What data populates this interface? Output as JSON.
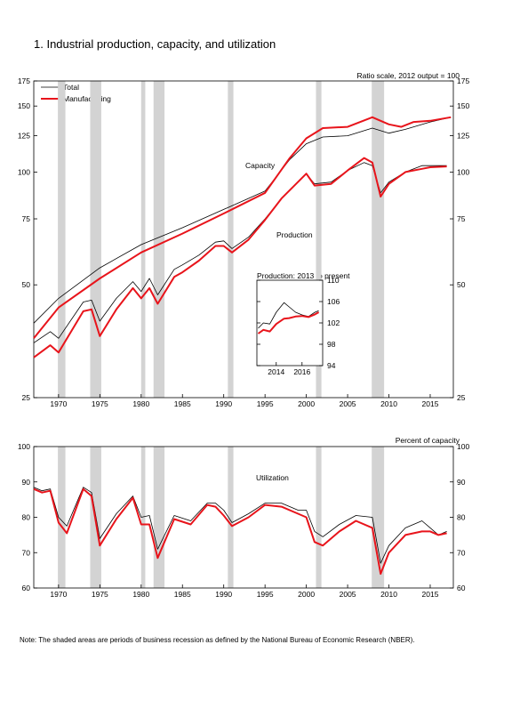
{
  "page": {
    "title": "1.  Industrial production, capacity, and utilization",
    "note": "Note: The shaded areas are periods of business recession as defined by the National Bureau of Economic Research (NBER)."
  },
  "colors": {
    "total": "#000000",
    "manufacturing": "#e8141b",
    "recession": "#d3d3d3",
    "axis": "#000000"
  },
  "recessions": [
    [
      1969.92,
      1970.83
    ],
    [
      1973.83,
      1975.17
    ],
    [
      1980.0,
      1980.5
    ],
    [
      1981.5,
      1982.83
    ],
    [
      1990.5,
      1991.17
    ],
    [
      2001.17,
      2001.83
    ],
    [
      2007.92,
      2009.42
    ]
  ],
  "chart_data": [
    {
      "type": "line",
      "id": "levels",
      "scale_note": "Ratio scale, 2012 output = 100",
      "yscale": "log",
      "xlim": [
        1967,
        2017.8
      ],
      "ylim": [
        25,
        175
      ],
      "yticks": [
        25,
        50,
        75,
        100,
        125,
        150,
        175
      ],
      "xticks": [
        1970,
        1975,
        1980,
        1985,
        1990,
        1995,
        2000,
        2005,
        2010,
        2015
      ],
      "legend": {
        "position": "top-left",
        "entries": [
          {
            "name": "Total",
            "color": "#000000"
          },
          {
            "name": "Manufacturing",
            "color": "#e8141b"
          }
        ]
      },
      "annotations": [
        "Capacity",
        "Production"
      ],
      "series": [
        {
          "name": "Total",
          "kind": "capacity",
          "points": [
            [
              1967,
              39.5
            ],
            [
              1970,
              46
            ],
            [
              1975,
              55.5
            ],
            [
              1980,
              64
            ],
            [
              1985,
              71
            ],
            [
              1990,
              79.5
            ],
            [
              1995,
              89
            ],
            [
              1998,
              108
            ],
            [
              2000,
              119
            ],
            [
              2002,
              124
            ],
            [
              2005,
              125
            ],
            [
              2008,
              131
            ],
            [
              2010,
              127
            ],
            [
              2012,
              130
            ],
            [
              2015,
              136
            ],
            [
              2017.5,
              140
            ]
          ]
        },
        {
          "name": "Manufacturing",
          "kind": "capacity",
          "points": [
            [
              1967,
              36
            ],
            [
              1970,
              43.5
            ],
            [
              1975,
              52
            ],
            [
              1980,
              61
            ],
            [
              1985,
              68.5
            ],
            [
              1990,
              77.5
            ],
            [
              1995,
              88
            ],
            [
              1998,
              109
            ],
            [
              2000,
              123
            ],
            [
              2002,
              131
            ],
            [
              2005,
              132
            ],
            [
              2008,
              140
            ],
            [
              2010,
              134
            ],
            [
              2011.5,
              132
            ],
            [
              2013,
              136
            ],
            [
              2015,
              137
            ],
            [
              2017.5,
              140
            ]
          ]
        },
        {
          "name": "Total",
          "kind": "production",
          "points": [
            [
              1967,
              35
            ],
            [
              1969,
              37.5
            ],
            [
              1970,
              36
            ],
            [
              1973,
              45
            ],
            [
              1974,
              45.5
            ],
            [
              1975,
              40
            ],
            [
              1977,
              46
            ],
            [
              1979,
              51
            ],
            [
              1980,
              48
            ],
            [
              1981,
              52
            ],
            [
              1982,
              47
            ],
            [
              1984,
              55
            ],
            [
              1985,
              56.5
            ],
            [
              1987,
              60
            ],
            [
              1989,
              65
            ],
            [
              1990,
              65.5
            ],
            [
              1991,
              62.5
            ],
            [
              1993,
              67
            ],
            [
              1995,
              75
            ],
            [
              1997,
              85
            ],
            [
              2000,
              99
            ],
            [
              2001,
              93
            ],
            [
              2003,
              94
            ],
            [
              2005,
              101
            ],
            [
              2007,
              106
            ],
            [
              2008,
              104
            ],
            [
              2009,
              88
            ],
            [
              2010,
              94
            ],
            [
              2012,
              100
            ],
            [
              2014,
              104
            ],
            [
              2015,
              104
            ],
            [
              2017,
              104
            ]
          ]
        },
        {
          "name": "Manufacturing",
          "kind": "production",
          "points": [
            [
              1967,
              32
            ],
            [
              1969,
              34.5
            ],
            [
              1970,
              33
            ],
            [
              1973,
              42.5
            ],
            [
              1974,
              43
            ],
            [
              1975,
              36.5
            ],
            [
              1977,
              43
            ],
            [
              1979,
              49
            ],
            [
              1980,
              46
            ],
            [
              1981,
              49
            ],
            [
              1982,
              44.5
            ],
            [
              1984,
              52.5
            ],
            [
              1985,
              54
            ],
            [
              1987,
              58
            ],
            [
              1989,
              63.5
            ],
            [
              1990,
              63.5
            ],
            [
              1991,
              61
            ],
            [
              1993,
              66
            ],
            [
              1995,
              74.5
            ],
            [
              1997,
              85
            ],
            [
              2000,
              99
            ],
            [
              2001,
              92
            ],
            [
              2003,
              93
            ],
            [
              2005,
              101
            ],
            [
              2007,
              109
            ],
            [
              2008,
              106
            ],
            [
              2009,
              86
            ],
            [
              2010,
              93
            ],
            [
              2012,
              100
            ],
            [
              2014,
              102
            ],
            [
              2015,
              103
            ],
            [
              2017,
              103.5
            ]
          ]
        }
      ]
    },
    {
      "type": "line",
      "id": "inset",
      "title": "Production: 2013 to present",
      "xlim": [
        2012.5,
        2017.6
      ],
      "ylim": [
        94,
        110
      ],
      "yticks": [
        94,
        98,
        102,
        106,
        110
      ],
      "xticks": [
        2014,
        2016
      ],
      "series": [
        {
          "name": "Total",
          "points": [
            [
              2012.6,
              101
            ],
            [
              2013,
              102
            ],
            [
              2013.5,
              101.8
            ],
            [
              2014,
              104
            ],
            [
              2014.6,
              105.8
            ],
            [
              2015,
              105
            ],
            [
              2015.5,
              104
            ],
            [
              2016,
              103.5
            ],
            [
              2016.5,
              103.2
            ],
            [
              2017,
              104
            ],
            [
              2017.3,
              104.3
            ]
          ]
        },
        {
          "name": "Manufacturing",
          "points": [
            [
              2012.6,
              100
            ],
            [
              2013,
              100.7
            ],
            [
              2013.5,
              100.4
            ],
            [
              2014,
              101.8
            ],
            [
              2014.6,
              102.8
            ],
            [
              2015,
              102.9
            ],
            [
              2015.5,
              103.2
            ],
            [
              2016,
              103.3
            ],
            [
              2016.5,
              103.1
            ],
            [
              2017,
              103.6
            ],
            [
              2017.3,
              104
            ]
          ]
        }
      ]
    },
    {
      "type": "line",
      "id": "utilization",
      "title": "Utilization",
      "scale_note": "Percent of capacity",
      "xlim": [
        1967,
        2017.8
      ],
      "ylim": [
        60,
        100
      ],
      "yticks": [
        60,
        70,
        80,
        90,
        100
      ],
      "xticks": [
        1970,
        1975,
        1980,
        1985,
        1990,
        1995,
        2000,
        2005,
        2010,
        2015
      ],
      "series": [
        {
          "name": "Total",
          "points": [
            [
              1967,
              88.5
            ],
            [
              1968,
              87.5
            ],
            [
              1969,
              88
            ],
            [
              1970,
              80
            ],
            [
              1971,
              77.5
            ],
            [
              1973,
              88.5
            ],
            [
              1974,
              87
            ],
            [
              1975,
              74
            ],
            [
              1977,
              81
            ],
            [
              1979,
              86
            ],
            [
              1980,
              80
            ],
            [
              1981,
              80.5
            ],
            [
              1982,
              71
            ],
            [
              1984,
              80.5
            ],
            [
              1986,
              79
            ],
            [
              1988,
              84
            ],
            [
              1989,
              84
            ],
            [
              1990,
              82
            ],
            [
              1991,
              78.5
            ],
            [
              1993,
              81
            ],
            [
              1995,
              84
            ],
            [
              1997,
              84
            ],
            [
              1999,
              82
            ],
            [
              2000,
              82
            ],
            [
              2001,
              76
            ],
            [
              2002,
              74.5
            ],
            [
              2004,
              78
            ],
            [
              2006,
              80.5
            ],
            [
              2008,
              80
            ],
            [
              2009,
              67
            ],
            [
              2010,
              72
            ],
            [
              2012,
              77
            ],
            [
              2014,
              79
            ],
            [
              2015,
              77
            ],
            [
              2016,
              75
            ],
            [
              2017,
              76
            ]
          ]
        },
        {
          "name": "Manufacturing",
          "points": [
            [
              1967,
              88
            ],
            [
              1968,
              87
            ],
            [
              1969,
              87.5
            ],
            [
              1970,
              78.5
            ],
            [
              1971,
              75.5
            ],
            [
              1973,
              88
            ],
            [
              1974,
              86
            ],
            [
              1975,
              72
            ],
            [
              1977,
              79.5
            ],
            [
              1979,
              85.5
            ],
            [
              1980,
              78
            ],
            [
              1981,
              78
            ],
            [
              1982,
              68.5
            ],
            [
              1984,
              79.5
            ],
            [
              1986,
              78
            ],
            [
              1988,
              83.5
            ],
            [
              1989,
              83
            ],
            [
              1990,
              80.5
            ],
            [
              1991,
              77.5
            ],
            [
              1993,
              80
            ],
            [
              1995,
              83.5
            ],
            [
              1997,
              83
            ],
            [
              1999,
              81
            ],
            [
              2000,
              80
            ],
            [
              2001,
              73
            ],
            [
              2002,
              72
            ],
            [
              2004,
              76
            ],
            [
              2006,
              79
            ],
            [
              2008,
              77
            ],
            [
              2009,
              64
            ],
            [
              2010,
              70
            ],
            [
              2012,
              75
            ],
            [
              2014,
              76
            ],
            [
              2015,
              76
            ],
            [
              2016,
              75
            ],
            [
              2017,
              75.5
            ]
          ]
        }
      ]
    }
  ]
}
